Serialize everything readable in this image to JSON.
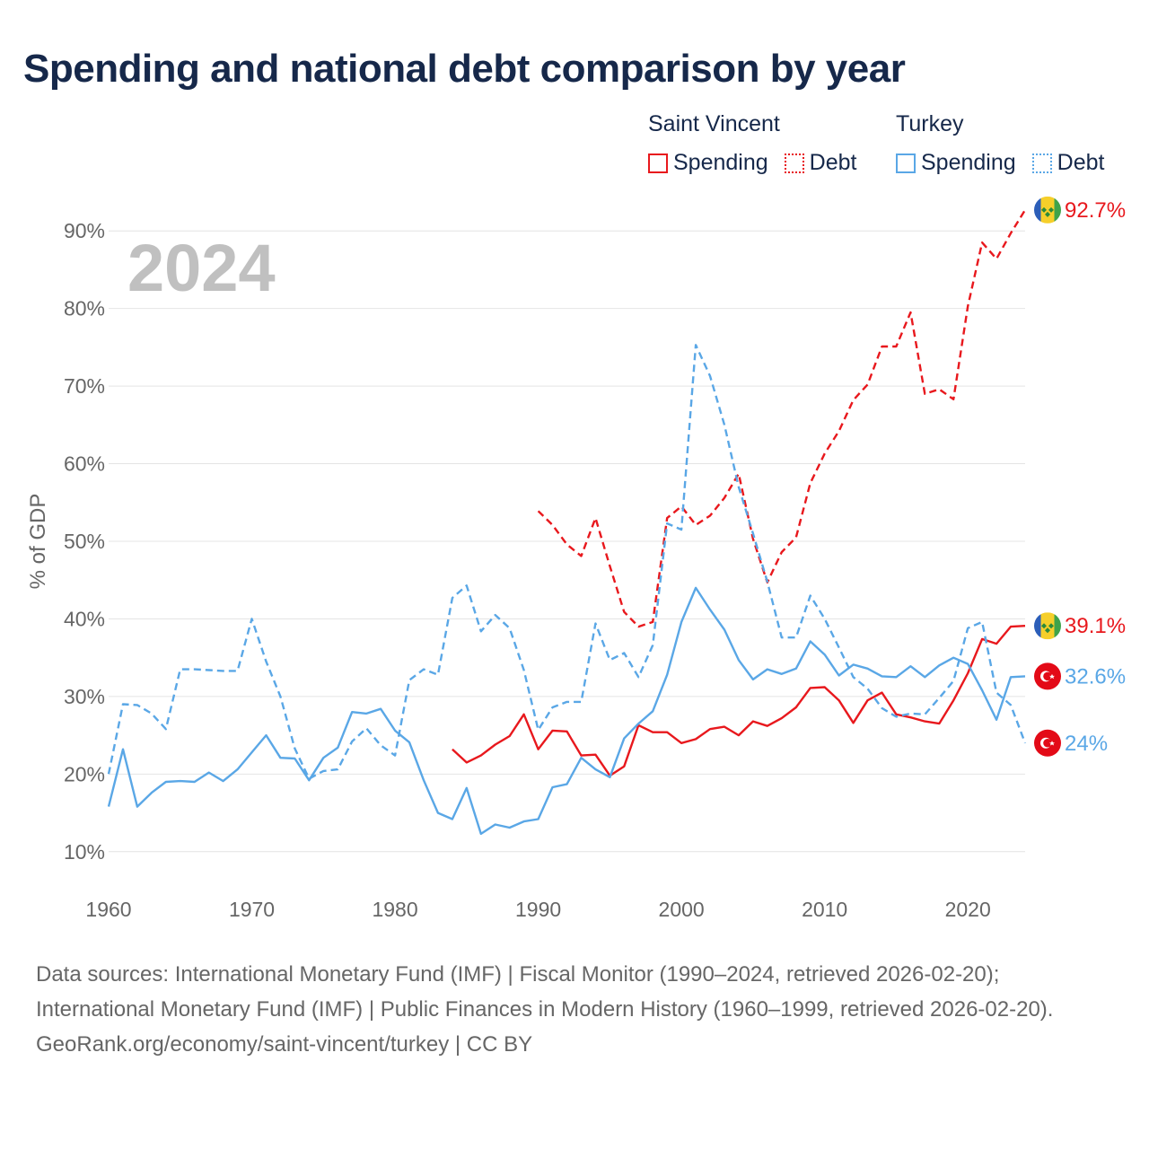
{
  "title": "Spending and national debt comparison by year",
  "legend": {
    "groups": [
      {
        "name": "Saint Vincent",
        "spending_label": "Spending",
        "debt_label": "Debt",
        "color": "#e8181d"
      },
      {
        "name": "Turkey",
        "spending_label": "Spending",
        "debt_label": "Debt",
        "color": "#5aa7e6"
      }
    ]
  },
  "footer": {
    "sources": "Data sources: International Monetary Fund (IMF) | Fiscal Monitor (1990–2024, retrieved 2026-02-20); International Monetary Fund (IMF) | Public Finances in Modern History (1960–1999, retrieved 2026-02-20).",
    "credit": "GeoRank.org/economy/saint-vincent/turkey | CC BY"
  },
  "chart_data": {
    "type": "line",
    "title": "Spending and national debt comparison by year",
    "year_label": "2024",
    "ylabel": "% of GDP",
    "xlabel": "",
    "xlim": [
      1960,
      2024
    ],
    "ylim": [
      5,
      95
    ],
    "x_ticks": [
      1960,
      1970,
      1980,
      1990,
      2000,
      2010,
      2020
    ],
    "y_ticks": [
      10,
      20,
      30,
      40,
      50,
      60,
      70,
      80,
      90
    ],
    "y_tick_labels": [
      "10%",
      "20%",
      "30%",
      "40%",
      "50%",
      "60%",
      "70%",
      "80%",
      "90%"
    ],
    "grid": true,
    "series": [
      {
        "name": "Saint Vincent Spending",
        "country": "Saint Vincent",
        "color": "#e8181d",
        "style": "solid",
        "x": [
          1984,
          1985,
          1986,
          1987,
          1988,
          1989,
          1990,
          1991,
          1992,
          1993,
          1994,
          1995,
          1996,
          1997,
          1998,
          1999,
          2000,
          2001,
          2002,
          2003,
          2004,
          2005,
          2006,
          2007,
          2008,
          2009,
          2010,
          2011,
          2012,
          2013,
          2014,
          2015,
          2016,
          2017,
          2018,
          2019,
          2020,
          2021,
          2022,
          2023,
          2024
        ],
        "values": [
          23.2,
          21.5,
          22.4,
          23.8,
          24.9,
          27.7,
          23.2,
          25.6,
          25.5,
          22.4,
          22.5,
          19.8,
          21.0,
          26.3,
          25.4,
          25.4,
          24.0,
          24.5,
          25.8,
          26.1,
          25.0,
          26.8,
          26.2,
          27.2,
          28.6,
          31.1,
          31.2,
          29.5,
          26.6,
          29.5,
          30.5,
          27.7,
          27.3,
          26.8,
          26.5,
          29.5,
          33.0,
          37.4,
          36.8,
          39.0,
          39.1
        ],
        "end_label": "39.1%"
      },
      {
        "name": "Saint Vincent Debt",
        "country": "Saint Vincent",
        "color": "#e8181d",
        "style": "dashed",
        "x": [
          1990,
          1991,
          1992,
          1993,
          1994,
          1995,
          1996,
          1997,
          1998,
          1999,
          2000,
          2001,
          2002,
          2003,
          2004,
          2005,
          2006,
          2007,
          2008,
          2009,
          2010,
          2011,
          2012,
          2013,
          2014,
          2015,
          2016,
          2017,
          2018,
          2019,
          2020,
          2021,
          2022,
          2023,
          2024
        ],
        "values": [
          53.9,
          52.1,
          49.6,
          48.1,
          53.0,
          46.8,
          40.9,
          39.0,
          39.6,
          53.0,
          54.5,
          52.1,
          53.3,
          55.6,
          58.7,
          50.3,
          44.7,
          48.6,
          50.5,
          57.5,
          61.3,
          64.2,
          68.2,
          70.2,
          75.1,
          75.1,
          79.5,
          69.0,
          69.6,
          68.3,
          80.3,
          88.5,
          86.4,
          89.7,
          92.7
        ],
        "end_label": "92.7%"
      },
      {
        "name": "Turkey Spending",
        "country": "Turkey",
        "color": "#5aa7e6",
        "style": "solid",
        "x": [
          1960,
          1961,
          1962,
          1963,
          1964,
          1965,
          1966,
          1967,
          1968,
          1969,
          1970,
          1971,
          1972,
          1973,
          1974,
          1975,
          1976,
          1977,
          1978,
          1979,
          1980,
          1981,
          1982,
          1983,
          1984,
          1985,
          1986,
          1987,
          1988,
          1989,
          1990,
          1991,
          1992,
          1993,
          1994,
          1995,
          1996,
          1997,
          1998,
          1999,
          2000,
          2001,
          2002,
          2003,
          2004,
          2005,
          2006,
          2007,
          2008,
          2009,
          2010,
          2011,
          2012,
          2013,
          2014,
          2015,
          2016,
          2017,
          2018,
          2019,
          2020,
          2021,
          2022,
          2023,
          2024
        ],
        "values": [
          15.8,
          23.2,
          15.8,
          17.6,
          19.0,
          19.1,
          19.0,
          20.2,
          19.1,
          20.6,
          22.8,
          25.0,
          22.1,
          22.0,
          19.2,
          22.1,
          23.4,
          28.0,
          27.8,
          28.4,
          25.6,
          24.1,
          19.2,
          15.0,
          14.2,
          18.2,
          12.3,
          13.5,
          13.1,
          13.9,
          14.2,
          18.3,
          18.7,
          22.1,
          20.6,
          19.6,
          24.6,
          26.5,
          28.1,
          32.8,
          39.6,
          44.0,
          41.2,
          38.6,
          34.7,
          32.2,
          33.5,
          32.9,
          33.6,
          37.1,
          35.4,
          32.7,
          34.1,
          33.6,
          32.6,
          32.5,
          33.9,
          32.5,
          34.0,
          35.0,
          34.2,
          30.8,
          27.0,
          32.5,
          32.6
        ],
        "end_label": "32.6%"
      },
      {
        "name": "Turkey Debt",
        "country": "Turkey",
        "color": "#5aa7e6",
        "style": "dashed",
        "x": [
          1960,
          1961,
          1962,
          1963,
          1964,
          1965,
          1966,
          1967,
          1968,
          1969,
          1970,
          1971,
          1972,
          1973,
          1974,
          1975,
          1976,
          1977,
          1978,
          1979,
          1980,
          1981,
          1982,
          1983,
          1984,
          1985,
          1986,
          1987,
          1988,
          1989,
          1990,
          1991,
          1992,
          1993,
          1994,
          1995,
          1996,
          1997,
          1998,
          1999,
          2000,
          2001,
          2002,
          2003,
          2004,
          2005,
          2006,
          2007,
          2008,
          2009,
          2010,
          2011,
          2012,
          2013,
          2014,
          2015,
          2016,
          2017,
          2018,
          2019,
          2020,
          2021,
          2022,
          2023,
          2024
        ],
        "values": [
          20.0,
          29.0,
          28.9,
          27.8,
          25.8,
          33.5,
          33.5,
          33.4,
          33.3,
          33.3,
          40.0,
          34.5,
          30.0,
          23.3,
          19.4,
          20.4,
          20.6,
          24.2,
          25.9,
          23.7,
          22.4,
          32.1,
          33.5,
          32.8,
          42.7,
          44.3,
          38.4,
          40.5,
          38.8,
          33.4,
          25.7,
          28.6,
          29.3,
          29.3,
          39.4,
          34.7,
          35.6,
          32.5,
          36.6,
          52.3,
          51.5,
          75.3,
          71.3,
          65.0,
          57.0,
          51.0,
          44.8,
          37.6,
          37.6,
          43.0,
          40.0,
          36.3,
          32.5,
          31.0,
          28.5,
          27.4,
          27.8,
          27.7,
          29.8,
          32.0,
          38.8,
          39.6,
          30.5,
          28.9,
          24.0
        ],
        "end_label": "24%"
      }
    ]
  }
}
